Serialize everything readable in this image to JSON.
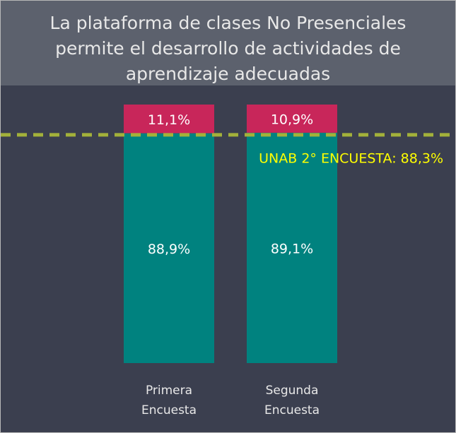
{
  "chart_data": {
    "type": "stacked_bar",
    "title": "La plataforma de clases No Presenciales permite el desarrollo de actividades de aprendizaje adecuadas",
    "categories": [
      "Primera Encuesta",
      "Segunda Encuesta"
    ],
    "series": [
      {
        "color": "#00827f",
        "values": [
          88.9,
          89.1
        ],
        "value_labels": [
          "88,9%",
          "89,1%"
        ]
      },
      {
        "color": "#c8265a",
        "values": [
          11.1,
          10.9
        ],
        "value_labels": [
          "11,1%",
          "10,9%"
        ]
      }
    ],
    "ylim": [
      0,
      100
    ],
    "reference_line": {
      "value": 88.3,
      "label": "UNAB 2° ENCUESTA: 88,3%",
      "color": "#a3b13a",
      "label_color": "#ffff00"
    }
  }
}
